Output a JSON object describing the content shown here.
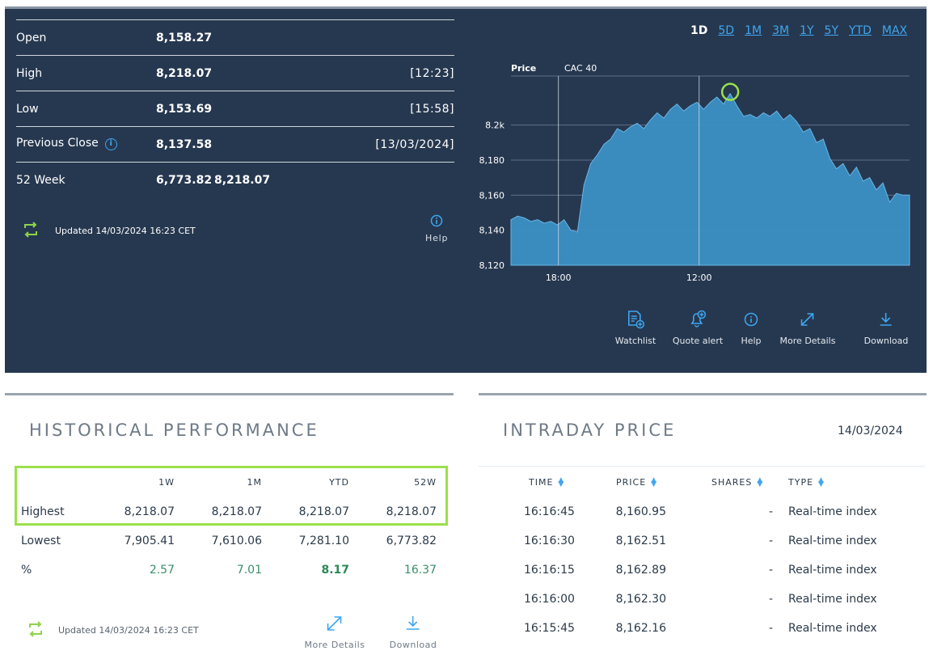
{
  "quote": {
    "open_label": "Open",
    "open_value": "8,158.27",
    "high_label": "High",
    "high_value": "8,218.07",
    "high_time": "[12:23]",
    "low_label": "Low",
    "low_value": "8,153.69",
    "low_time": "[15:58]",
    "prev_label": "Previous Close",
    "prev_value": "8,137.58",
    "prev_date": "[13/03/2024]",
    "week_label": "52 Week",
    "week_low": "6,773.82",
    "week_high": "8,218.07",
    "updated": "Updated 14/03/2024 16:23 CET",
    "help": "Help"
  },
  "chart": {
    "ranges": [
      "1D",
      "5D",
      "1M",
      "3M",
      "1Y",
      "5Y",
      "YTD",
      "MAX"
    ],
    "active_range": "1D",
    "price_label": "Price",
    "series_label": "CAC 40",
    "y_ticks": [
      "8.2k",
      "8,180",
      "8,160",
      "8,140",
      "8,120"
    ],
    "x_ticks": [
      "18:00",
      "12:00"
    ]
  },
  "chart_data": {
    "type": "area",
    "title": "",
    "series": [
      {
        "name": "CAC 40"
      }
    ],
    "ylim": [
      8120,
      8228
    ],
    "x_ticks": [
      "18:00",
      "12:00"
    ],
    "y_ticks": [
      8200,
      8180,
      8160,
      8140,
      8120
    ],
    "values": [
      8146,
      8148,
      8147,
      8145,
      8146,
      8144,
      8145,
      8143,
      8146,
      8140,
      8139,
      8166,
      8178,
      8183,
      8189,
      8192,
      8198,
      8196,
      8199,
      8201,
      8198,
      8203,
      8207,
      8204,
      8209,
      8212,
      8208,
      8211,
      8213,
      8209,
      8213,
      8216,
      8212,
      8218,
      8211,
      8205,
      8206,
      8204,
      8207,
      8205,
      8208,
      8203,
      8206,
      8202,
      8196,
      8198,
      8190,
      8192,
      8181,
      8175,
      8178,
      8171,
      8176,
      8168,
      8170,
      8163,
      8167,
      8156,
      8161,
      8160,
      8160
    ],
    "highlight": {
      "label": "High",
      "value": 8218.07
    }
  },
  "tools": {
    "watchlist": "Watchlist",
    "quote_alert": "Quote alert",
    "help": "Help",
    "more_details": "More Details",
    "download": "Download"
  },
  "historical": {
    "title": "HISTORICAL PERFORMANCE",
    "columns": [
      "1W",
      "1M",
      "YTD",
      "52W"
    ],
    "rows": [
      {
        "label": "Highest",
        "values": [
          "8,218.07",
          "8,218.07",
          "8,218.07",
          "8,218.07"
        ]
      },
      {
        "label": "Lowest",
        "values": [
          "7,905.41",
          "7,610.06",
          "7,281.10",
          "6,773.82"
        ]
      },
      {
        "label": "%",
        "values": [
          "2.57",
          "7.01",
          "8.17",
          "16.37"
        ]
      }
    ],
    "updated": "Updated 14/03/2024 16:23 CET",
    "more_details": "More Details",
    "download": "Download"
  },
  "intraday": {
    "title": "INTRADAY PRICE",
    "date": "14/03/2024",
    "headers": {
      "time": "TIME",
      "price": "PRICE",
      "shares": "SHARES",
      "type": "TYPE"
    },
    "rows": [
      {
        "time": "16:16:45",
        "price": "8,160.95",
        "shares": "-",
        "type": "Real-time index"
      },
      {
        "time": "16:16:30",
        "price": "8,162.51",
        "shares": "-",
        "type": "Real-time index"
      },
      {
        "time": "16:16:15",
        "price": "8,162.89",
        "shares": "-",
        "type": "Real-time index"
      },
      {
        "time": "16:16:00",
        "price": "8,162.30",
        "shares": "-",
        "type": "Real-time index"
      },
      {
        "time": "16:15:45",
        "price": "8,162.16",
        "shares": "-",
        "type": "Real-time index"
      }
    ]
  },
  "colors": {
    "panel": "#263850",
    "accent": "#3fa6f0",
    "chart_fill": "#3b8fc4",
    "highlight": "#9be04a",
    "positive": "#3a8f68"
  }
}
